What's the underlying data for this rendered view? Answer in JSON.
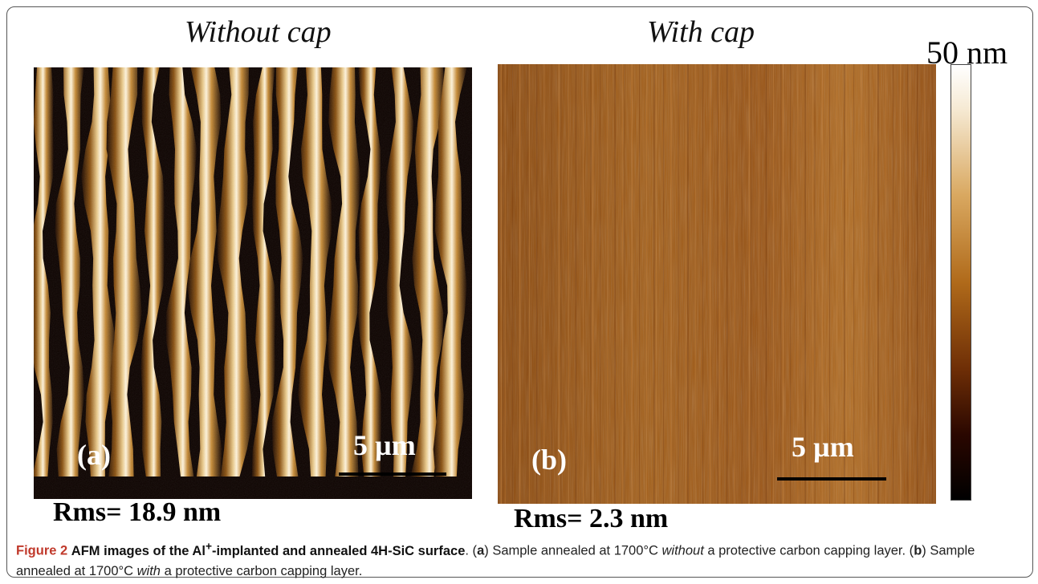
{
  "panel_a": {
    "title": "Without cap",
    "label": "(a)",
    "scale_text": "5 µm",
    "rms": "Rms= 18.9 nm"
  },
  "panel_b": {
    "title": "With cap",
    "label": "(b)",
    "scale_text": "5 µm",
    "rms": "Rms= 2.3 nm"
  },
  "colorbar": {
    "max_label": "50 nm",
    "colors": [
      "#ffffff",
      "#d9a860",
      "#b06a1a",
      "#6e2e06",
      "#000000"
    ]
  },
  "caption": {
    "figure_label": "Figure 2",
    "title_pre": "AFM images of the Al",
    "title_sup": "+",
    "title_post": "-implanted and annealed 4H-SiC surface",
    "dot": ". (",
    "a_letter": "a",
    "a_text_pre": ") Sample annealed at 1700°C ",
    "a_italic": "without",
    "a_text_post": " a protective carbon capping layer. (",
    "b_letter": "b",
    "b_text_pre": ") Sample annealed at 1700°C ",
    "b_italic": "with",
    "b_text_post": " a protective carbon capping layer."
  }
}
